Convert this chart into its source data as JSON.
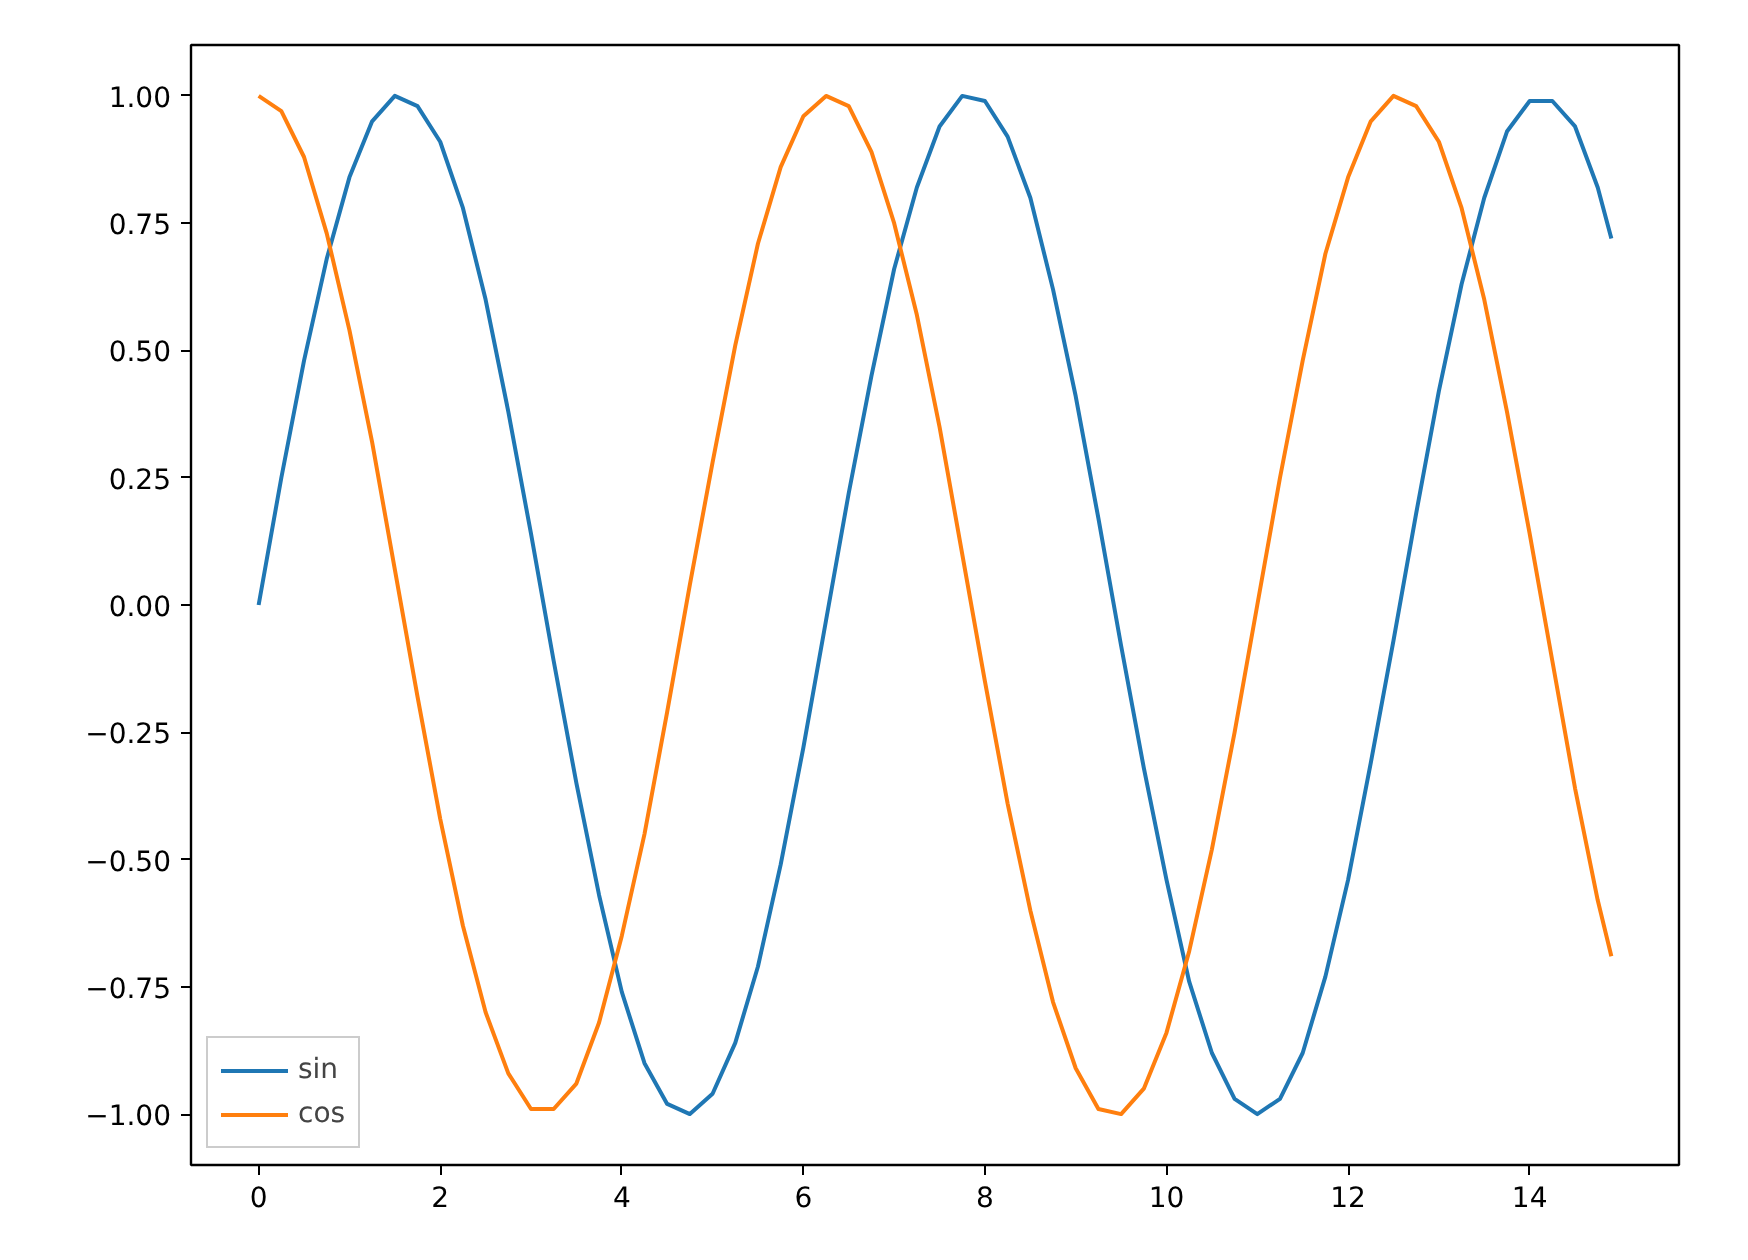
{
  "chart_data": {
    "type": "line",
    "x": [
      0,
      0.25,
      0.5,
      0.75,
      1,
      1.25,
      1.5,
      1.75,
      2,
      2.25,
      2.5,
      2.75,
      3,
      3.25,
      3.5,
      3.75,
      4,
      4.25,
      4.5,
      4.75,
      5,
      5.25,
      5.5,
      5.75,
      6,
      6.25,
      6.5,
      6.75,
      7,
      7.25,
      7.5,
      7.75,
      8,
      8.25,
      8.5,
      8.75,
      9,
      9.25,
      9.5,
      9.75,
      10,
      10.25,
      10.5,
      10.75,
      11,
      11.25,
      11.5,
      11.75,
      12,
      12.25,
      12.5,
      12.75,
      13,
      13.25,
      13.5,
      13.75,
      14,
      14.25,
      14.5,
      14.75,
      14.9
    ],
    "series": [
      {
        "name": "sin",
        "color": "#1f77b4",
        "values": [
          0,
          0.25,
          0.48,
          0.68,
          0.84,
          0.95,
          1.0,
          0.98,
          0.91,
          0.78,
          0.6,
          0.38,
          0.14,
          -0.11,
          -0.35,
          -0.57,
          -0.76,
          -0.9,
          -0.98,
          -1.0,
          -0.96,
          -0.86,
          -0.71,
          -0.51,
          -0.28,
          -0.03,
          0.22,
          0.45,
          0.66,
          0.82,
          0.94,
          1.0,
          0.99,
          0.92,
          0.8,
          0.62,
          0.41,
          0.17,
          -0.08,
          -0.32,
          -0.54,
          -0.74,
          -0.88,
          -0.97,
          -1.0,
          -0.97,
          -0.88,
          -0.73,
          -0.54,
          -0.31,
          -0.07,
          0.18,
          0.42,
          0.63,
          0.8,
          0.93,
          0.99,
          0.99,
          0.94,
          0.82,
          0.72
        ]
      },
      {
        "name": "cos",
        "color": "#ff7f0e",
        "values": [
          1.0,
          0.97,
          0.88,
          0.73,
          0.54,
          0.32,
          0.07,
          -0.18,
          -0.42,
          -0.63,
          -0.8,
          -0.92,
          -0.99,
          -0.99,
          -0.94,
          -0.82,
          -0.65,
          -0.45,
          -0.21,
          0.04,
          0.28,
          0.51,
          0.71,
          0.86,
          0.96,
          1.0,
          0.98,
          0.89,
          0.75,
          0.57,
          0.35,
          0.1,
          -0.15,
          -0.39,
          -0.6,
          -0.78,
          -0.91,
          -0.99,
          -1.0,
          -0.95,
          -0.84,
          -0.68,
          -0.48,
          -0.25,
          0.0,
          0.25,
          0.48,
          0.69,
          0.84,
          0.95,
          1.0,
          0.98,
          0.91,
          0.78,
          0.6,
          0.38,
          0.14,
          -0.11,
          -0.36,
          -0.58,
          -0.69
        ]
      }
    ],
    "xlim": [
      -0.745,
      15.645
    ],
    "ylim": [
      -1.1,
      1.1
    ],
    "xticks": [
      0,
      2,
      4,
      6,
      8,
      10,
      12,
      14
    ],
    "yticks": [
      {
        "value": -1,
        "label": "−1.00"
      },
      {
        "value": -0.75,
        "label": "−0.75"
      },
      {
        "value": -0.5,
        "label": "−0.50"
      },
      {
        "value": -0.25,
        "label": "−0.25"
      },
      {
        "value": 0,
        "label": "0.00"
      },
      {
        "value": 0.25,
        "label": "0.25"
      },
      {
        "value": 0.5,
        "label": "0.50"
      },
      {
        "value": 0.75,
        "label": "0.75"
      },
      {
        "value": 1,
        "label": "1.00"
      }
    ],
    "grid": false,
    "legend": "bottom left"
  }
}
